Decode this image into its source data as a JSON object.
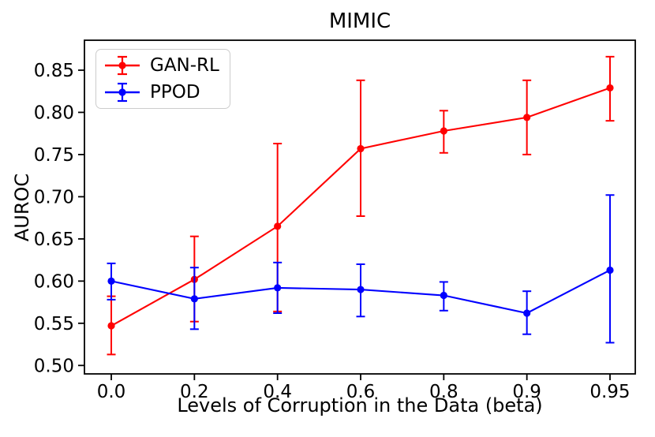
{
  "chart_data": {
    "type": "line",
    "title": "MIMIC",
    "xlabel": "Levels of Corruption in the Data (beta)",
    "ylabel": "AUROC",
    "categories": [
      "0.0",
      "0.2",
      "0.4",
      "0.6",
      "0.8",
      "0.9",
      "0.95"
    ],
    "y_tick_labels": [
      "0.50",
      "0.55",
      "0.60",
      "0.65",
      "0.70",
      "0.75",
      "0.80",
      "0.85"
    ],
    "ylim": [
      0.49,
      0.8855
    ],
    "xlim_index": [
      -0.323,
      6.304
    ],
    "grid": false,
    "legend_position": "upper-left",
    "axis_color": "#000000",
    "background_color": "#ffffff",
    "series": [
      {
        "name": "GAN-RL",
        "color": "#ff0000",
        "marker": "circle",
        "values": [
          0.547,
          0.602,
          0.665,
          0.757,
          0.778,
          0.794,
          0.829
        ],
        "err_lower": [
          0.513,
          0.552,
          0.564,
          0.677,
          0.752,
          0.75,
          0.79
        ],
        "err_upper": [
          0.582,
          0.653,
          0.763,
          0.838,
          0.802,
          0.838,
          0.866
        ]
      },
      {
        "name": "PPOD",
        "color": "#0000ff",
        "marker": "circle",
        "values": [
          0.6,
          0.579,
          0.592,
          0.59,
          0.583,
          0.562,
          0.613
        ],
        "err_lower": [
          0.578,
          0.543,
          0.562,
          0.558,
          0.565,
          0.537,
          0.527
        ],
        "err_upper": [
          0.621,
          0.616,
          0.622,
          0.62,
          0.599,
          0.588,
          0.702
        ]
      }
    ]
  }
}
